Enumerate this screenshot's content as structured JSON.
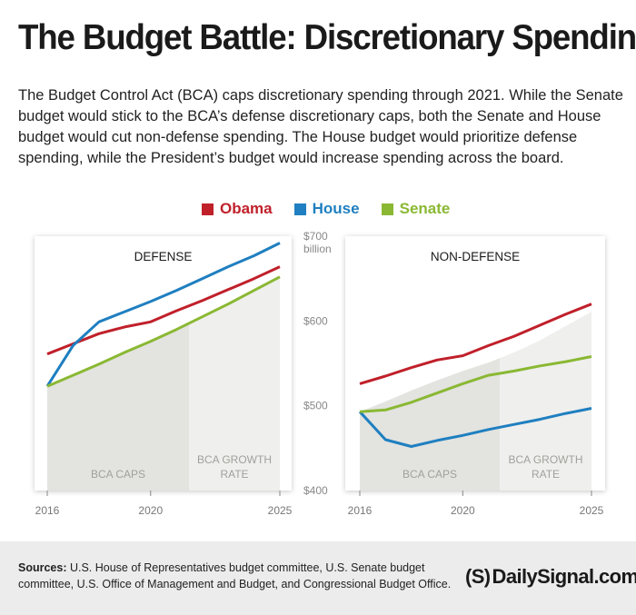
{
  "title": "The Budget Battle: Discretionary Spending",
  "intro": "The Budget Control Act (BCA) caps discretionary spending through 2021. While the Senate budget would stick to the BCA’s defense discretionary caps, both the Senate and House budget would cut non-defense spending. The House budget would prioritize defense spending, while the President’s budget would increase spending across the board.",
  "legend": [
    {
      "label": "Obama",
      "color": "#c0202a"
    },
    {
      "label": "House",
      "color": "#1f7fc0"
    },
    {
      "label": "Senate",
      "color": "#8ab833"
    }
  ],
  "chart_data": [
    {
      "type": "line",
      "title": "DEFENSE",
      "x": [
        2016,
        2017,
        2018,
        2019,
        2020,
        2021,
        2022,
        2023,
        2024,
        2025
      ],
      "xticks": [
        "2016",
        "2020",
        "2025"
      ],
      "shaded_regions": [
        "BCA CAPS",
        "BCA GROWTH RATE"
      ],
      "series": [
        {
          "name": "Obama",
          "color": "#c0202a",
          "values": [
            561,
            573,
            585,
            593,
            599,
            612,
            624,
            637,
            650,
            664
          ]
        },
        {
          "name": "House",
          "color": "#1f7fc0",
          "values": [
            523,
            571,
            599,
            611,
            623,
            636,
            650,
            664,
            677,
            692
          ]
        },
        {
          "name": "Senate",
          "color": "#8ab833",
          "values": [
            523,
            536,
            549,
            563,
            576,
            590,
            605,
            620,
            636,
            652
          ]
        }
      ],
      "bca_area": [
        523,
        536,
        549,
        563,
        576,
        590,
        605,
        620,
        636,
        652
      ]
    },
    {
      "type": "line",
      "title": "NON-DEFENSE",
      "x": [
        2016,
        2017,
        2018,
        2019,
        2020,
        2021,
        2022,
        2023,
        2024,
        2025
      ],
      "xticks": [
        "2016",
        "2020",
        "2025"
      ],
      "shaded_regions": [
        "BCA CAPS",
        "BCA GROWTH RATE"
      ],
      "series": [
        {
          "name": "Obama",
          "color": "#c0202a",
          "values": [
            526,
            535,
            545,
            554,
            559,
            571,
            582,
            595,
            608,
            620
          ]
        },
        {
          "name": "House",
          "color": "#1f7fc0",
          "values": [
            493,
            460,
            452,
            459,
            465,
            472,
            478,
            484,
            491,
            497
          ]
        },
        {
          "name": "Senate",
          "color": "#8ab833",
          "values": [
            493,
            495,
            504,
            515,
            526,
            536,
            541,
            547,
            552,
            558
          ]
        }
      ],
      "bca_area": [
        493,
        505,
        518,
        530,
        541,
        551,
        563,
        577,
        594,
        611
      ]
    }
  ],
  "y_axis": {
    "ticks": [
      "$700",
      "$600",
      "$500",
      "$400"
    ],
    "values": [
      700,
      600,
      500,
      400
    ],
    "unit": "billion",
    "ylim": [
      400,
      700
    ]
  },
  "sources_label": "Sources:",
  "sources_text": " U.S. House of Representatives budget committee, U.S. Senate budget committee, U.S. Office of Management and Budget, and Congressional Budget Office.",
  "brand": "DailySignal.com",
  "brand_mark": "(S)"
}
